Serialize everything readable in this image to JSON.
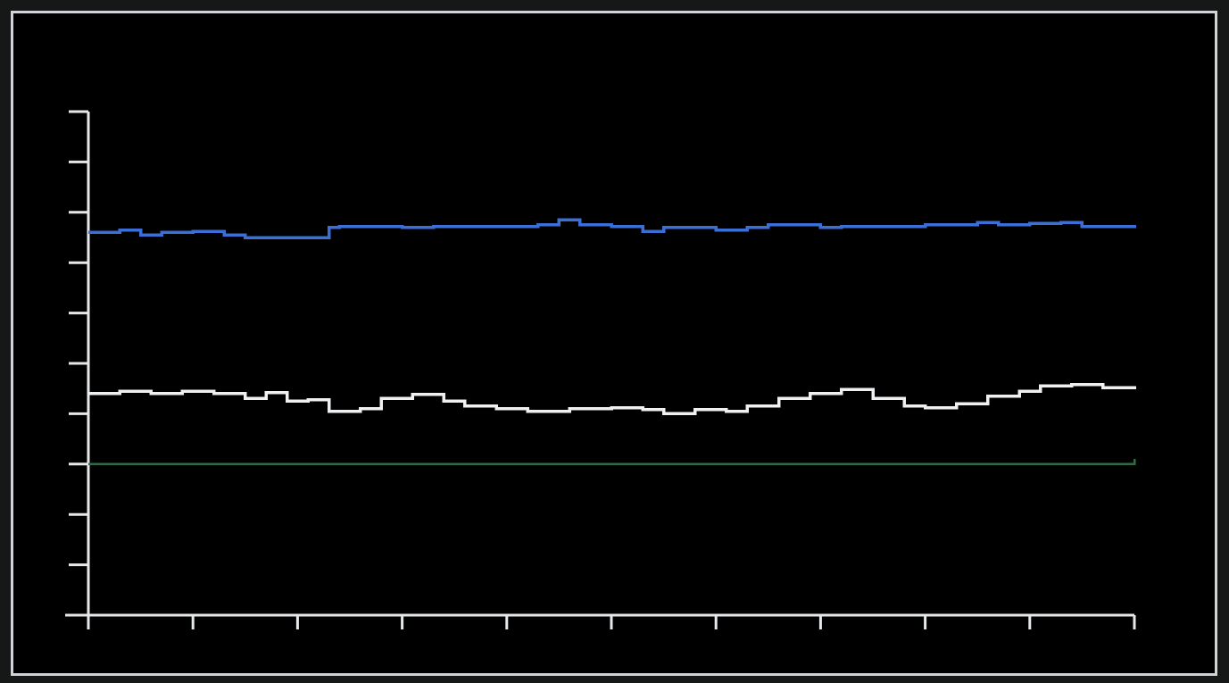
{
  "screen": {
    "background": "#000000",
    "frame_color": "#cfd3d6"
  },
  "chart_data": {
    "type": "line",
    "title": "",
    "xlabel": "",
    "ylabel": "",
    "xlim": [
      0,
      10
    ],
    "ylim": [
      0,
      10
    ],
    "x_ticks": [
      0,
      1,
      2,
      3,
      4,
      5,
      6,
      7,
      8,
      9,
      10
    ],
    "y_ticks": [
      0,
      1,
      2,
      3,
      4,
      5,
      6,
      7,
      8,
      9,
      10
    ],
    "grid": false,
    "legend": "none",
    "axis_color": "#e6e8ea",
    "series": [
      {
        "color": "#3b6fd6",
        "x": [
          0,
          0.3,
          0.5,
          0.7,
          1.0,
          1.3,
          1.5,
          1.7,
          2.2,
          2.3,
          2.4,
          2.8,
          3.0,
          3.3,
          3.7,
          4.3,
          4.5,
          4.7,
          5.0,
          5.3,
          5.5,
          5.7,
          6.0,
          6.3,
          6.5,
          7.0,
          7.2,
          7.5,
          8.0,
          8.5,
          8.7,
          9.0,
          9.3,
          9.5,
          10.0
        ],
        "y": [
          7.6,
          7.65,
          7.55,
          7.6,
          7.62,
          7.55,
          7.5,
          7.5,
          7.5,
          7.7,
          7.72,
          7.72,
          7.7,
          7.72,
          7.72,
          7.75,
          7.85,
          7.75,
          7.72,
          7.62,
          7.7,
          7.7,
          7.65,
          7.7,
          7.75,
          7.7,
          7.72,
          7.72,
          7.75,
          7.8,
          7.75,
          7.78,
          7.8,
          7.72,
          7.75
        ]
      },
      {
        "color": "#eef0f2",
        "x": [
          0,
          0.3,
          0.6,
          0.9,
          1.2,
          1.5,
          1.7,
          1.9,
          2.1,
          2.3,
          2.6,
          2.8,
          3.1,
          3.4,
          3.6,
          3.9,
          4.2,
          4.6,
          5.0,
          5.3,
          5.5,
          5.8,
          6.1,
          6.3,
          6.6,
          6.9,
          7.2,
          7.5,
          7.8,
          8.0,
          8.3,
          8.6,
          8.9,
          9.1,
          9.4,
          9.7,
          10.0
        ],
        "y": [
          4.4,
          4.45,
          4.4,
          4.45,
          4.4,
          4.3,
          4.42,
          4.25,
          4.28,
          4.05,
          4.1,
          4.3,
          4.38,
          4.25,
          4.15,
          4.1,
          4.05,
          4.1,
          4.12,
          4.08,
          4.0,
          4.08,
          4.05,
          4.15,
          4.3,
          4.4,
          4.48,
          4.3,
          4.15,
          4.12,
          4.2,
          4.35,
          4.45,
          4.55,
          4.58,
          4.52,
          4.55
        ]
      },
      {
        "color": "#2f6b46",
        "x": [
          0,
          10
        ],
        "y": [
          3.0,
          3.1
        ]
      }
    ]
  }
}
